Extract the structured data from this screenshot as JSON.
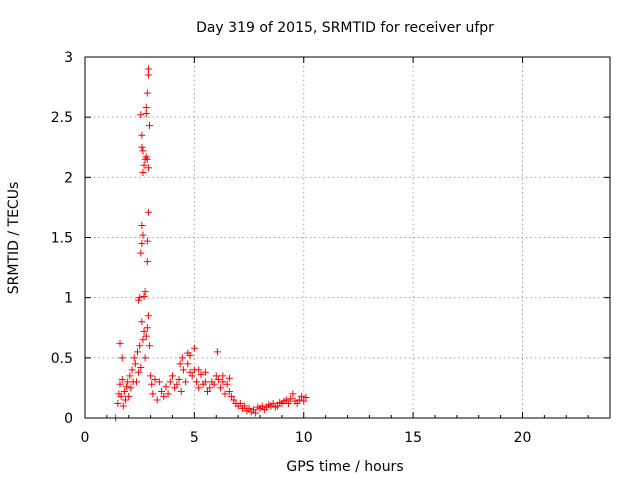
{
  "chart_data": {
    "type": "scatter",
    "title": "Day 319 of 2015, SRMTID for receiver ufpr",
    "xlabel": "GPS time / hours",
    "ylabel": "SRMTID / TECUs",
    "xlim": [
      0,
      24
    ],
    "ylim": [
      0,
      3
    ],
    "xticks": [
      0,
      5,
      10,
      15,
      20
    ],
    "yticks": [
      0,
      0.5,
      1,
      1.5,
      2,
      2.5,
      3
    ],
    "grid": true,
    "marker": "plus",
    "color": "#ff0000",
    "series": [
      {
        "x": [
          1.4,
          1.5,
          1.55,
          1.6,
          1.65,
          1.7,
          1.75,
          1.8,
          1.85,
          1.9,
          1.95,
          2.0,
          2.05,
          2.1,
          2.15,
          2.2,
          2.25,
          2.3,
          2.35,
          2.4,
          2.45,
          2.5,
          2.55,
          2.6,
          2.65,
          2.7,
          2.75,
          2.8,
          2.85,
          2.9,
          2.95,
          3.0,
          3.05,
          3.1,
          3.2,
          3.3,
          3.4,
          3.5,
          3.6,
          3.7,
          3.8,
          3.9,
          4.0,
          4.1,
          4.2,
          4.3,
          4.4,
          4.5,
          4.6,
          4.7,
          4.8,
          4.9,
          5.0,
          5.1,
          5.2,
          5.3,
          5.4,
          5.5,
          5.6,
          5.7,
          5.8,
          5.9,
          6.0,
          6.1,
          6.2,
          6.3,
          6.4,
          6.5,
          6.6,
          6.7,
          6.8,
          6.9,
          7.0,
          7.1,
          7.2,
          7.3,
          7.4,
          7.5,
          7.6,
          7.7,
          7.8,
          7.9,
          8.0,
          8.1,
          8.2,
          8.3,
          8.4,
          8.5,
          8.6,
          8.7,
          8.8,
          8.9,
          9.0,
          9.1,
          9.2,
          9.3,
          9.4,
          9.5,
          9.6,
          9.7,
          9.8,
          9.9,
          10.0,
          10.1,
          1.6,
          1.7,
          2.45,
          2.5,
          2.55,
          2.6,
          2.6,
          2.65,
          2.65,
          2.7,
          2.75,
          2.8,
          2.85,
          2.85,
          2.9,
          2.9,
          2.95,
          2.55,
          2.6,
          2.65,
          2.6,
          2.7,
          2.75,
          2.8,
          2.8,
          2.85,
          2.9,
          2.9,
          2.85,
          4.45,
          4.8,
          5.0,
          6.05,
          4.35,
          4.7,
          5.2,
          5.5,
          6.3,
          6.6
        ],
        "y": [
          0.0,
          0.12,
          0.2,
          0.28,
          0.18,
          0.32,
          0.1,
          0.22,
          0.15,
          0.26,
          0.3,
          0.18,
          0.35,
          0.25,
          0.4,
          0.3,
          0.5,
          0.45,
          0.3,
          0.55,
          0.38,
          0.6,
          0.42,
          0.8,
          0.65,
          0.72,
          0.5,
          0.68,
          0.75,
          0.85,
          0.6,
          0.35,
          0.28,
          0.2,
          0.32,
          0.15,
          0.3,
          0.22,
          0.18,
          0.26,
          0.2,
          0.3,
          0.35,
          0.25,
          0.28,
          0.32,
          0.22,
          0.4,
          0.3,
          0.45,
          0.38,
          0.35,
          0.4,
          0.3,
          0.25,
          0.36,
          0.28,
          0.3,
          0.22,
          0.25,
          0.3,
          0.28,
          0.35,
          0.32,
          0.25,
          0.3,
          0.2,
          0.28,
          0.22,
          0.18,
          0.15,
          0.12,
          0.1,
          0.12,
          0.08,
          0.1,
          0.06,
          0.08,
          0.05,
          0.07,
          0.04,
          0.09,
          0.08,
          0.1,
          0.07,
          0.09,
          0.11,
          0.1,
          0.12,
          0.09,
          0.1,
          0.13,
          0.12,
          0.14,
          0.15,
          0.12,
          0.16,
          0.2,
          0.14,
          0.12,
          0.15,
          0.18,
          0.14,
          0.17,
          0.62,
          0.5,
          0.98,
          1.0,
          1.37,
          1.45,
          1.6,
          1.52,
          2.04,
          2.1,
          2.15,
          2.17,
          1.47,
          1.3,
          2.08,
          1.71,
          2.43,
          2.52,
          2.35,
          2.22,
          2.25,
          1.01,
          1.05,
          2.53,
          2.58,
          2.7,
          2.85,
          2.9,
          2.15,
          0.5,
          0.52,
          0.58,
          0.55,
          0.45,
          0.54,
          0.4,
          0.38,
          0.35,
          0.33
        ]
      }
    ]
  }
}
